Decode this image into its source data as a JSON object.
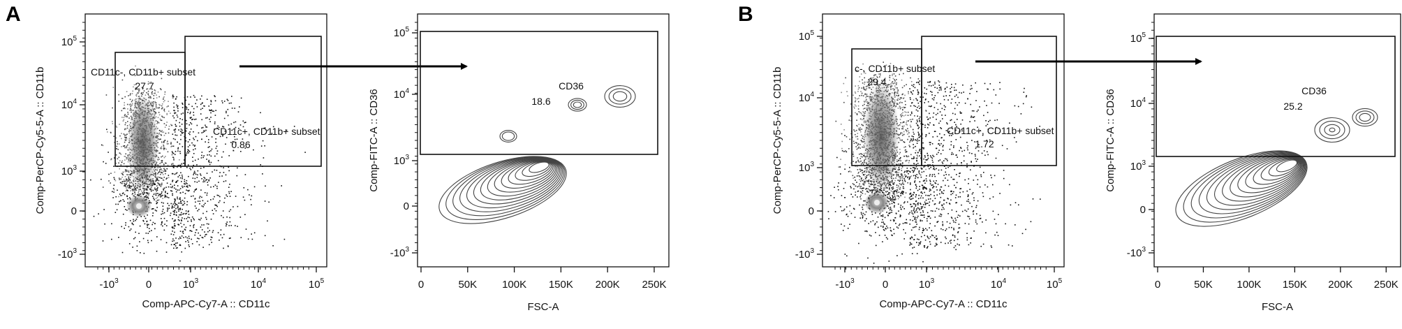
{
  "panels": [
    {
      "label": "A",
      "scatter": {
        "xlabel": "Comp-APC-Cy7-A :: CD11c",
        "ylabel": "Comp-PerCP-Cy5-5-A :: CD11b",
        "xticks": [
          {
            "base": "-10",
            "exp": "3"
          },
          {
            "base": "0",
            "exp": ""
          },
          {
            "base": "10",
            "exp": "3"
          },
          {
            "base": "10",
            "exp": "4"
          },
          {
            "base": "10",
            "exp": "5"
          }
        ],
        "yticks": [
          {
            "base": "10",
            "exp": "5"
          },
          {
            "base": "10",
            "exp": "4"
          },
          {
            "base": "10",
            "exp": "3"
          },
          {
            "base": "0",
            "exp": ""
          },
          {
            "base": "-10",
            "exp": "3"
          }
        ],
        "gates": [
          {
            "name": "CD11c-, CD11b+ subset",
            "value": "27.7"
          },
          {
            "name": "CD11c+, CD11b+ subset",
            "value": "0.86"
          }
        ]
      },
      "contour": {
        "xlabel": "FSC-A",
        "ylabel": "Comp-FITC-A :: CD36",
        "xticks": [
          "0",
          "50K",
          "100K",
          "150K",
          "200K",
          "250K"
        ],
        "yticks": [
          {
            "base": "10",
            "exp": "5"
          },
          {
            "base": "10",
            "exp": "4"
          },
          {
            "base": "10",
            "exp": "3"
          },
          {
            "base": "0",
            "exp": ""
          },
          {
            "base": "-10",
            "exp": "3"
          }
        ],
        "gate": {
          "name": "CD36",
          "value": "18.6"
        }
      }
    },
    {
      "label": "B",
      "scatter": {
        "xlabel": "Comp-APC-Cy7-A :: CD11c",
        "ylabel": "Comp-PerCP-Cy5-5-A :: CD11b",
        "xticks": [
          {
            "base": "-10",
            "exp": "3"
          },
          {
            "base": "0",
            "exp": ""
          },
          {
            "base": "10",
            "exp": "3"
          },
          {
            "base": "10",
            "exp": "4"
          },
          {
            "base": "10",
            "exp": "5"
          }
        ],
        "yticks": [
          {
            "base": "10",
            "exp": "5"
          },
          {
            "base": "10",
            "exp": "4"
          },
          {
            "base": "10",
            "exp": "3"
          },
          {
            "base": "0",
            "exp": ""
          },
          {
            "base": "-10",
            "exp": "3"
          }
        ],
        "gates": [
          {
            "name": "c-, CD11b+ subset",
            "value": "29.4"
          },
          {
            "name": "CD11c+, CD11b+ subset",
            "value": "1.72"
          }
        ]
      },
      "contour": {
        "xlabel": "FSC-A",
        "ylabel": "Comp-FITC-A :: CD36",
        "xticks": [
          "0",
          "50K",
          "100K",
          "150K",
          "200K",
          "250K"
        ],
        "yticks": [
          {
            "base": "10",
            "exp": "5"
          },
          {
            "base": "10",
            "exp": "4"
          },
          {
            "base": "10",
            "exp": "3"
          },
          {
            "base": "0",
            "exp": ""
          },
          {
            "base": "-10",
            "exp": "3"
          }
        ],
        "gate": {
          "name": "CD36",
          "value": "25.2"
        }
      }
    }
  ],
  "chart_data": [
    {
      "type": "scatter",
      "xlabel": "Comp-APC-Cy7-A :: CD11c",
      "ylabel": "Comp-PerCP-Cy5-5-A :: CD11b",
      "scale": "biexponential",
      "gates": [
        {
          "name": "CD11c-, CD11b+ subset",
          "percent": 27.7
        },
        {
          "name": "CD11c+, CD11b+ subset",
          "percent": 0.86
        }
      ]
    },
    {
      "type": "contour",
      "xlabel": "FSC-A",
      "ylabel": "Comp-FITC-A :: CD36",
      "xlim": [
        0,
        262144
      ],
      "gates": [
        {
          "name": "CD36",
          "percent": 18.6
        }
      ]
    },
    {
      "type": "scatter",
      "xlabel": "Comp-APC-Cy7-A :: CD11c",
      "ylabel": "Comp-PerCP-Cy5-5-A :: CD11b",
      "scale": "biexponential",
      "gates": [
        {
          "name": "c-, CD11b+ subset",
          "percent": 29.4
        },
        {
          "name": "CD11c+, CD11b+ subset",
          "percent": 1.72
        }
      ]
    },
    {
      "type": "contour",
      "xlabel": "FSC-A",
      "ylabel": "Comp-FITC-A :: CD36",
      "xlim": [
        0,
        262144
      ],
      "gates": [
        {
          "name": "CD36",
          "percent": 25.2
        }
      ]
    }
  ]
}
